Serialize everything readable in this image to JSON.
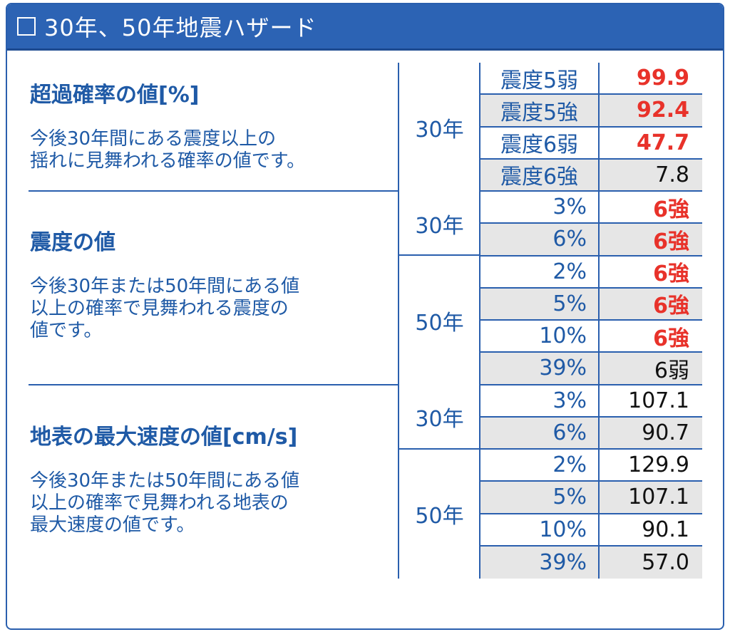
{
  "header": {
    "title": "30年、50年地震ハザード"
  },
  "sections": [
    {
      "title": "超過確率の値[%]",
      "desc_lines": [
        "今後30年間にある震度以上の",
        "揺れに見舞われる確率の値です。"
      ],
      "groups": [
        {
          "period": "30年",
          "rows": [
            {
              "label": "震度5弱",
              "value": "99.9",
              "highlight": true
            },
            {
              "label": "震度5強",
              "value": "92.4",
              "highlight": true
            },
            {
              "label": "震度6弱",
              "value": "47.7",
              "highlight": true
            },
            {
              "label": "震度6強",
              "value": "7.8",
              "highlight": false
            }
          ]
        }
      ]
    },
    {
      "title": "震度の値",
      "desc_lines": [
        "今後30年または50年間にある値",
        "以上の確率で見舞われる震度の",
        "値です。"
      ],
      "groups": [
        {
          "period": "30年",
          "rows": [
            {
              "label": "3%",
              "value": "6強",
              "highlight": true
            },
            {
              "label": "6%",
              "value": "6強",
              "highlight": true
            }
          ]
        },
        {
          "period": "50年",
          "rows": [
            {
              "label": "2%",
              "value": "6強",
              "highlight": true
            },
            {
              "label": "5%",
              "value": "6強",
              "highlight": true
            },
            {
              "label": "10%",
              "value": "6強",
              "highlight": true
            },
            {
              "label": "39%",
              "value": "6弱",
              "highlight": false
            }
          ]
        }
      ]
    },
    {
      "title": "地表の最大速度の値[cm/s]",
      "desc_lines": [
        "今後30年または50年間にある値",
        "以上の確率で見舞われる地表の",
        "最大速度の値です。"
      ],
      "groups": [
        {
          "period": "30年",
          "rows": [
            {
              "label": "3%",
              "value": "107.1",
              "highlight": false
            },
            {
              "label": "6%",
              "value": "90.7",
              "highlight": false
            }
          ]
        },
        {
          "period": "50年",
          "rows": [
            {
              "label": "2%",
              "value": "129.9",
              "highlight": false
            },
            {
              "label": "5%",
              "value": "107.1",
              "highlight": false
            },
            {
              "label": "10%",
              "value": "90.1",
              "highlight": false
            },
            {
              "label": "39%",
              "value": "57.0",
              "highlight": false
            }
          ]
        }
      ]
    }
  ]
}
